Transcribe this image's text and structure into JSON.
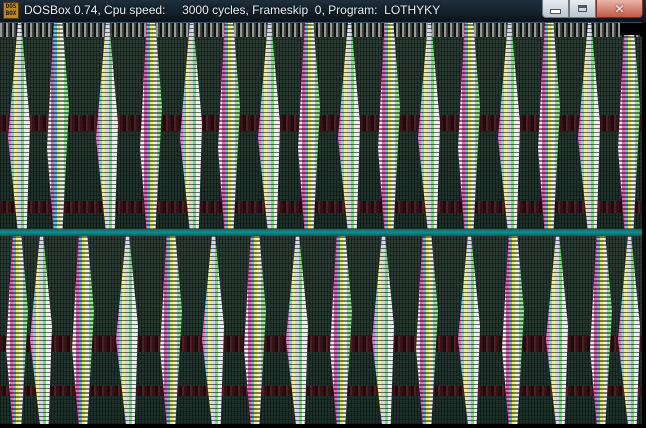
{
  "window": {
    "title": "DOSBox 0.74, Cpu speed:     3000 cycles, Frameskip  0, Program:  LOTHYKY",
    "icon_label_line1": "DOS",
    "icon_label_line2": "BOX",
    "icons": {
      "app": "dosbox-icon",
      "minimize": "minimize-icon",
      "maximize": "maximize-icon",
      "close": "close-icon"
    },
    "close_glyph": "✕"
  },
  "screen": {
    "description_colors": {
      "background": "#1b3a32",
      "divider": "#0e8e8e",
      "dark_stripe": "#3a0e12"
    }
  }
}
